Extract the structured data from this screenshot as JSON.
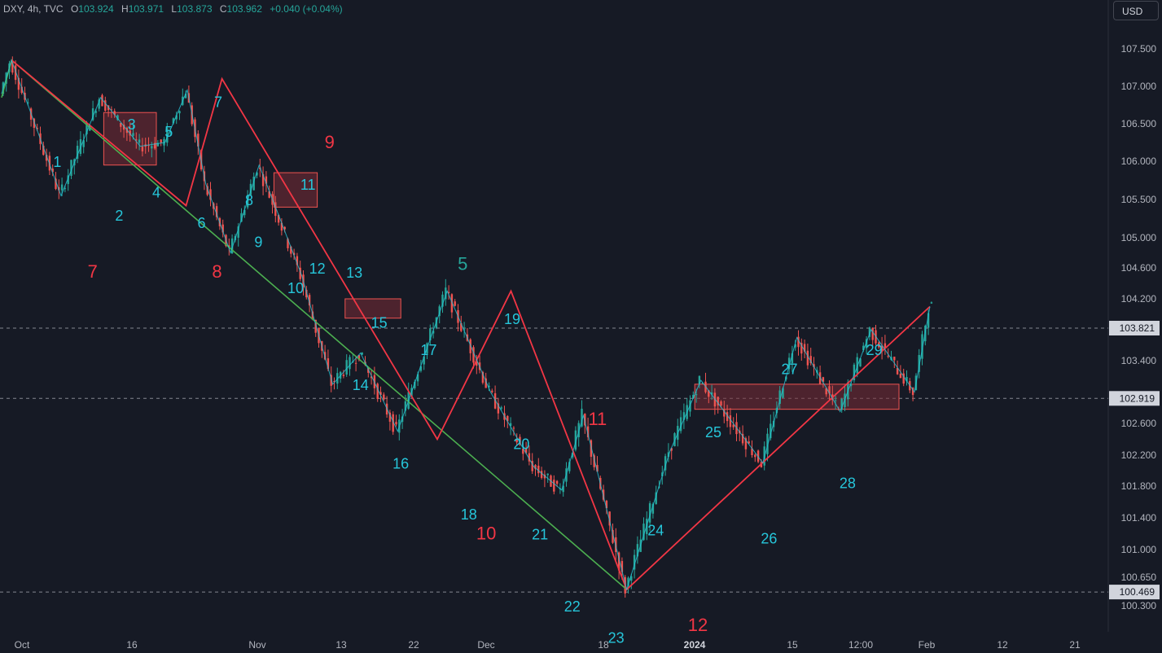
{
  "header": {
    "symbol": "DXY, 4h, TVC",
    "open_label": "O",
    "open": "103.924",
    "high_label": "H",
    "high": "103.971",
    "low_label": "L",
    "low": "103.873",
    "close_label": "C",
    "close": "103.962",
    "change": "+0.040 (+0.04%)"
  },
  "currency_button": "USD",
  "colors": {
    "background": "#161a25",
    "up": "#26a69a",
    "down": "#ef5350",
    "wave_cyan": "#26c6da",
    "wave_red": "#f23645",
    "trend_green": "#4caf50",
    "zone_fill": "#7b2c36"
  },
  "chart_data": {
    "type": "candlestick",
    "timeframe": "4h",
    "y_axis": {
      "ticks": [
        "107.500",
        "107.000",
        "106.500",
        "106.000",
        "105.500",
        "105.000",
        "104.600",
        "104.200",
        "103.400",
        "102.600",
        "102.200",
        "101.800",
        "101.400",
        "101.000",
        "100.650",
        "100.300"
      ],
      "range": [
        100.1,
        107.9
      ]
    },
    "x_axis": {
      "ticks": [
        "Oct",
        "16",
        "Nov",
        "13",
        "22",
        "Dec",
        "18",
        "2024",
        "15",
        "12:00",
        "Feb",
        "12",
        "21"
      ],
      "bold_ticks": [
        "2024"
      ]
    },
    "price_tags": [
      {
        "label": "103.821",
        "value": 103.821
      },
      {
        "label": "102.919",
        "value": 102.919
      },
      {
        "label": "100.469",
        "value": 100.469
      }
    ],
    "swing_path": [
      [
        0,
        106.9
      ],
      [
        1.6,
        107.35
      ],
      [
        9.6,
        105.55
      ],
      [
        16,
        106.85
      ],
      [
        22.4,
        106.2
      ],
      [
        26.4,
        106.25
      ],
      [
        30,
        106.95
      ],
      [
        33,
        105.7
      ],
      [
        37,
        104.8
      ],
      [
        41.6,
        105.95
      ],
      [
        44.5,
        105.35
      ],
      [
        48.5,
        104.5
      ],
      [
        53.5,
        103.1
      ],
      [
        58,
        103.5
      ],
      [
        64,
        102.5
      ],
      [
        72,
        104.3
      ],
      [
        79,
        103.0
      ],
      [
        86,
        102.05
      ],
      [
        90.5,
        101.75
      ],
      [
        94,
        102.7
      ],
      [
        101,
        100.5
      ],
      [
        108,
        102.25
      ],
      [
        113,
        103.15
      ],
      [
        123,
        102.1
      ],
      [
        128.5,
        103.7
      ],
      [
        135.5,
        102.75
      ],
      [
        140.5,
        103.8
      ],
      [
        147.5,
        103.0
      ],
      [
        150,
        104.1
      ]
    ],
    "series": [
      {
        "type": "trendline",
        "style": "green",
        "points": [
          [
            0,
            106.85
          ],
          [
            1.6,
            107.35
          ],
          [
            101,
            100.5
          ]
        ]
      },
      {
        "type": "trendline",
        "style": "red",
        "points": [
          [
            1.6,
            107.35
          ],
          [
            29.8,
            105.42
          ],
          [
            35.6,
            107.1
          ],
          [
            70.4,
            102.4
          ],
          [
            82.3,
            104.3
          ],
          [
            101,
            100.5
          ],
          [
            150,
            104.1
          ]
        ]
      },
      {
        "type": "wave",
        "style": "cyan",
        "points": [
          [
            0,
            106.9
          ],
          [
            1.6,
            107.35
          ],
          [
            9.6,
            105.55
          ],
          [
            16,
            106.85
          ],
          [
            22.4,
            106.2
          ],
          [
            26.4,
            106.25
          ],
          [
            30,
            106.95
          ],
          [
            33,
            105.7
          ],
          [
            37,
            104.8
          ],
          [
            41.6,
            105.95
          ],
          [
            44.5,
            105.35
          ],
          [
            48.5,
            104.5
          ],
          [
            53.5,
            103.1
          ],
          [
            58,
            103.5
          ],
          [
            64,
            102.5
          ],
          [
            72,
            104.3
          ],
          [
            79,
            103.0
          ],
          [
            86,
            102.05
          ],
          [
            90.5,
            101.75
          ],
          [
            94,
            102.7
          ],
          [
            101,
            100.5
          ],
          [
            108,
            102.25
          ],
          [
            113,
            103.15
          ],
          [
            123,
            102.1
          ],
          [
            128.5,
            103.7
          ],
          [
            135.5,
            102.75
          ],
          [
            140.5,
            103.8
          ],
          [
            147.5,
            103.0
          ],
          [
            150,
            104.1
          ]
        ]
      }
    ],
    "zones": [
      {
        "x0": 16.5,
        "x1": 25,
        "y0": 106.65,
        "y1": 105.95
      },
      {
        "x0": 44,
        "x1": 51,
        "y0": 105.85,
        "y1": 105.4
      },
      {
        "x0": 55.5,
        "x1": 64.5,
        "y0": 104.2,
        "y1": 103.95
      },
      {
        "x0": 112,
        "x1": 145,
        "y0": 103.1,
        "y1": 102.78
      }
    ],
    "wave_labels": [
      {
        "text": "1",
        "x": 9,
        "y": 106.0,
        "color": "cyan"
      },
      {
        "text": "2",
        "x": 19,
        "y": 105.3,
        "color": "cyan"
      },
      {
        "text": "3",
        "x": 21,
        "y": 106.5,
        "color": "cyan"
      },
      {
        "text": "4",
        "x": 25,
        "y": 105.6,
        "color": "cyan"
      },
      {
        "text": "5",
        "x": 27,
        "y": 106.4,
        "color": "cyan"
      },
      {
        "text": "6",
        "x": 32.3,
        "y": 105.2,
        "color": "cyan"
      },
      {
        "text": "7",
        "x": 35,
        "y": 106.8,
        "color": "cyan"
      },
      {
        "text": "8",
        "x": 40,
        "y": 105.5,
        "color": "cyan"
      },
      {
        "text": "9",
        "x": 41.5,
        "y": 104.95,
        "color": "cyan"
      },
      {
        "text": "10",
        "x": 47.5,
        "y": 104.35,
        "color": "cyan"
      },
      {
        "text": "11",
        "x": 49.5,
        "y": 105.7,
        "color": "cyan"
      },
      {
        "text": "12",
        "x": 51,
        "y": 104.6,
        "color": "cyan"
      },
      {
        "text": "13",
        "x": 57,
        "y": 104.55,
        "color": "cyan"
      },
      {
        "text": "14",
        "x": 58,
        "y": 103.1,
        "color": "cyan"
      },
      {
        "text": "15",
        "x": 61,
        "y": 103.9,
        "color": "cyan"
      },
      {
        "text": "16",
        "x": 64.5,
        "y": 102.1,
        "color": "cyan"
      },
      {
        "text": "17",
        "x": 69,
        "y": 103.55,
        "color": "cyan"
      },
      {
        "text": "18",
        "x": 75.5,
        "y": 101.45,
        "color": "cyan"
      },
      {
        "text": "19",
        "x": 82.5,
        "y": 103.95,
        "color": "cyan"
      },
      {
        "text": "20",
        "x": 84,
        "y": 102.35,
        "color": "cyan"
      },
      {
        "text": "21",
        "x": 87,
        "y": 101.2,
        "color": "cyan"
      },
      {
        "text": "22",
        "x": 92.2,
        "y": 100.3,
        "color": "cyan"
      },
      {
        "text": "23",
        "x": 99.3,
        "y": 99.9,
        "color": "cyan"
      },
      {
        "text": "24",
        "x": 105.7,
        "y": 101.25,
        "color": "cyan"
      },
      {
        "text": "25",
        "x": 115,
        "y": 102.5,
        "color": "cyan"
      },
      {
        "text": "26",
        "x": 124,
        "y": 101.15,
        "color": "cyan"
      },
      {
        "text": "27",
        "x": 127.3,
        "y": 103.3,
        "color": "cyan"
      },
      {
        "text": "28",
        "x": 136.7,
        "y": 101.85,
        "color": "cyan"
      },
      {
        "text": "29",
        "x": 141,
        "y": 103.55,
        "color": "cyan"
      },
      {
        "text": "7",
        "x": 14.7,
        "y": 104.55,
        "color": "red"
      },
      {
        "text": "8",
        "x": 34.8,
        "y": 104.55,
        "color": "red"
      },
      {
        "text": "9",
        "x": 53,
        "y": 106.25,
        "color": "red"
      },
      {
        "text": "10",
        "x": 78.3,
        "y": 101.2,
        "color": "red"
      },
      {
        "text": "11",
        "x": 96.3,
        "y": 102.65,
        "color": "red"
      },
      {
        "text": "12",
        "x": 112.5,
        "y": 100.05,
        "color": "red"
      },
      {
        "text": "5",
        "x": 74.5,
        "y": 104.65,
        "color": "green"
      }
    ]
  }
}
